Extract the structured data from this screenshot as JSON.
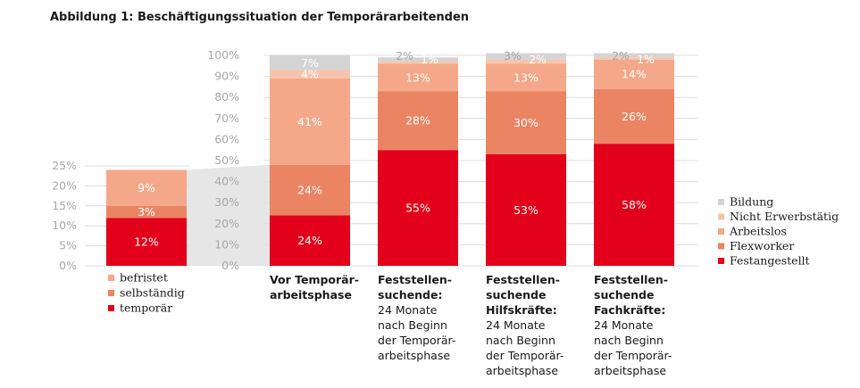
{
  "title": "Abbildung 1: Beschäftigungssituation der Temporärarbeitenden",
  "colors": {
    "Bildung": "#d4d4d4",
    "Nicht Erwerbstätig": "#f8c4ac",
    "Arbeitslos": "#f4a889",
    "Flexworker": "#eb8463",
    "Festangestellt": "#e2001a",
    "befristet": "#f4a889",
    "selbständig": "#eb8463",
    "temporär": "#e2001a",
    "grid": "#dcdcdc",
    "connector": "#e6e6e6"
  },
  "chart_data": [
    {
      "type": "bar",
      "stacked": true,
      "title": "",
      "ylim": [
        0,
        25
      ],
      "yticks": [
        "0%",
        "5%",
        "10%",
        "15%",
        "20%",
        "25%"
      ],
      "categories": [
        ""
      ],
      "series": [
        {
          "name": "temporär",
          "values": [
            12
          ],
          "labels": [
            "12%"
          ]
        },
        {
          "name": "selbständig",
          "values": [
            3
          ],
          "labels": [
            "3%"
          ]
        },
        {
          "name": "befristet",
          "values": [
            9
          ],
          "labels": [
            "9%"
          ]
        }
      ],
      "legend": [
        "befristet",
        "selbständig",
        "temporär"
      ],
      "legend_position": "bottom"
    },
    {
      "type": "bar",
      "stacked": true,
      "title": "",
      "ylim": [
        0,
        100
      ],
      "yticks": [
        "0%",
        "10%",
        "20%",
        "30%",
        "40%",
        "50%",
        "60%",
        "70%",
        "80%",
        "90%",
        "100%"
      ],
      "categories": [
        {
          "bold": [
            "Vor Temporär-",
            "arbeitsphase"
          ],
          "normal": []
        },
        {
          "bold": [
            "Feststellen-",
            "suchende:"
          ],
          "normal": [
            "24 Monate",
            "nach Beginn",
            "der Temporär-",
            "arbeitsphase"
          ]
        },
        {
          "bold": [
            "Feststellen-",
            "suchende",
            "Hilfskräfte:"
          ],
          "normal": [
            "24 Monate",
            "nach Beginn",
            "der Temporär-",
            "arbeitsphase"
          ]
        },
        {
          "bold": [
            "Feststellen-",
            "suchende",
            "Fachkräfte:"
          ],
          "normal": [
            "24 Monate",
            "nach Beginn",
            "der Temporär-",
            "arbeitsphase"
          ]
        }
      ],
      "series": [
        {
          "name": "Festangestellt",
          "values": [
            24,
            55,
            53,
            58
          ],
          "labels": [
            "24%",
            "55%",
            "53%",
            "58%"
          ]
        },
        {
          "name": "Flexworker",
          "values": [
            24,
            28,
            30,
            26
          ],
          "labels": [
            "24%",
            "28%",
            "30%",
            "26%"
          ]
        },
        {
          "name": "Arbeitslos",
          "values": [
            41,
            13,
            13,
            14
          ],
          "labels": [
            "41%",
            "13%",
            "13%",
            "14%"
          ]
        },
        {
          "name": "Nicht Erwerbstätig",
          "values": [
            4,
            1,
            2,
            1
          ],
          "labels": [
            "4%",
            "1%",
            "2%",
            "1%"
          ]
        },
        {
          "name": "Bildung",
          "values": [
            7,
            2,
            3,
            2
          ],
          "labels": [
            "7%",
            "2%",
            "3%",
            "2%"
          ]
        }
      ],
      "legend": [
        "Bildung",
        "Nicht Erwerbstätig",
        "Arbeitslos",
        "Flexworker",
        "Festangestellt"
      ],
      "legend_position": "right"
    }
  ]
}
